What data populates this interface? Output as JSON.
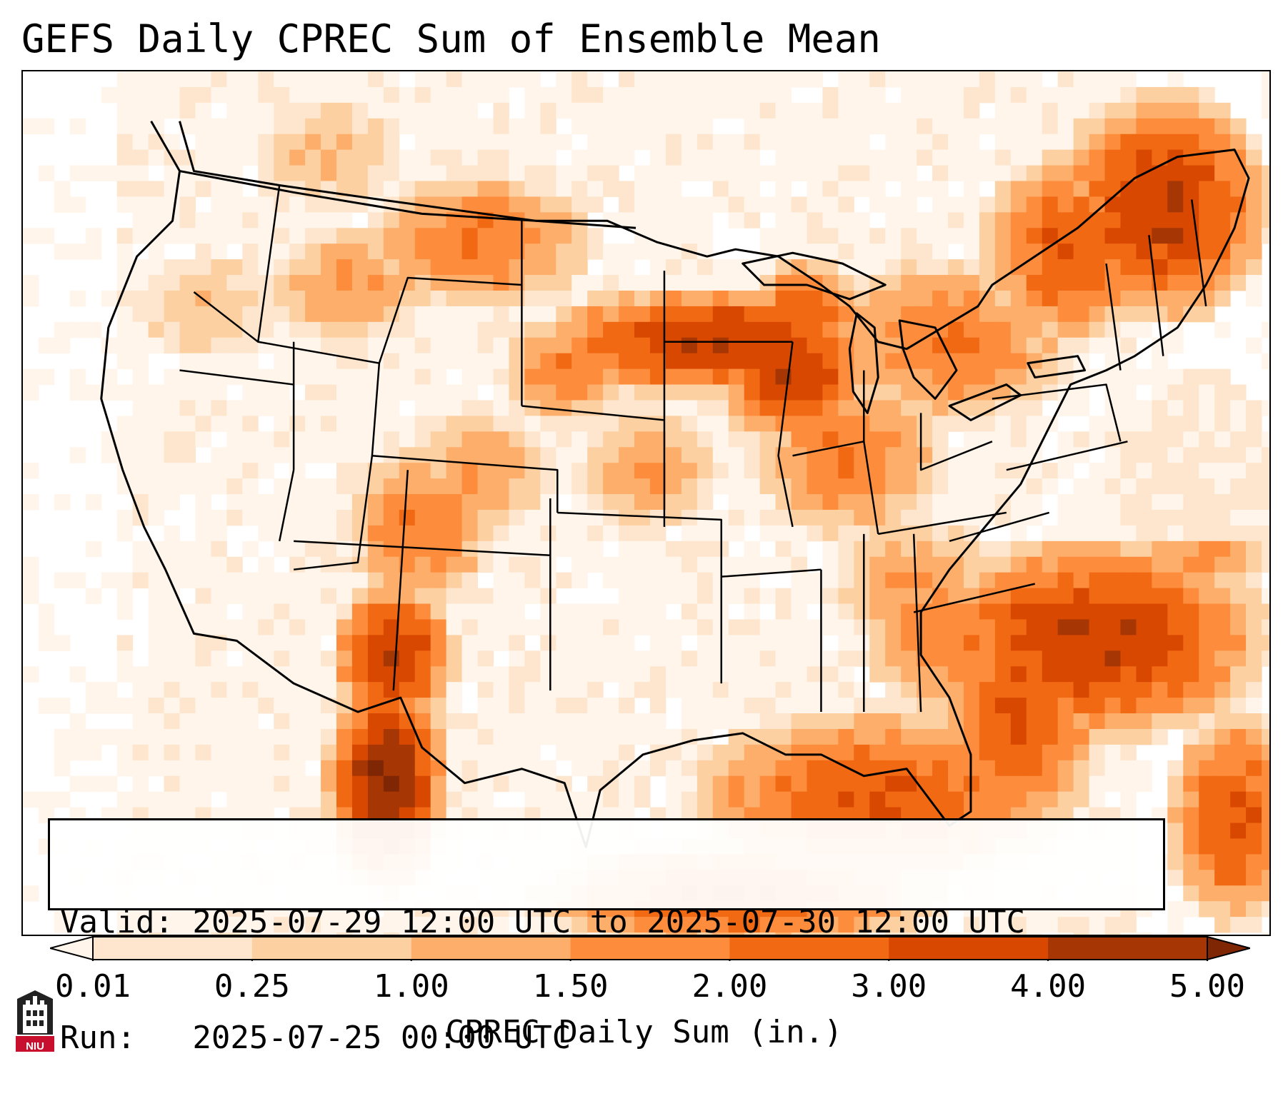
{
  "title": "GEFS Daily CPREC Sum of Ensemble Mean",
  "info_box": {
    "valid_line": "Valid: 2025-07-29 12:00 UTC to 2025-07-30 12:00 UTC",
    "run_line": "Run:   2025-07-25 00:00 UTC"
  },
  "colorbar": {
    "title": "CPREC Daily Sum (in.)",
    "ticks": [
      "0.01",
      "0.25",
      "1.00",
      "1.50",
      "2.00",
      "3.00",
      "4.00",
      "5.00"
    ],
    "colors": [
      "#fff5eb",
      "#fee6ce",
      "#fdd0a2",
      "#fdae6b",
      "#fd8d3c",
      "#f16913",
      "#d94801",
      "#a63603",
      "#7f2704"
    ],
    "extend": "both"
  },
  "logo": {
    "text": "NIU",
    "color": "#c8102e"
  },
  "map": {
    "region": "Contiguous United States",
    "projection": "Lambert Conformal",
    "boundaries": [
      "coastlines",
      "country borders",
      "US state lines"
    ]
  }
}
